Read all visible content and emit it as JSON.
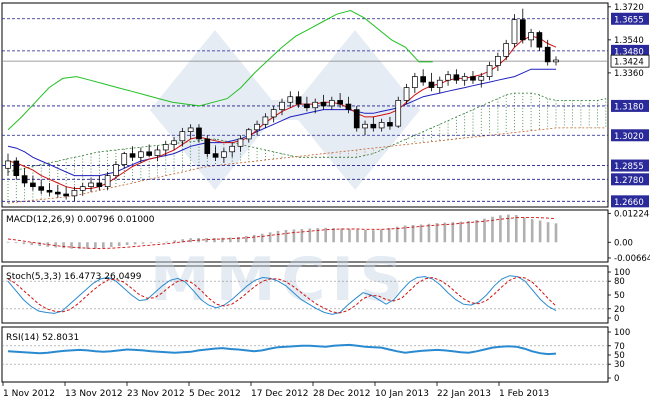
{
  "chart_data": [
    {
      "type": "candlestick",
      "panel": "price",
      "pair_levels": {
        "axis_ticks": [
          "1.3720",
          "1.3540",
          "1.3360"
        ],
        "levels": [
          {
            "value": 1.3655,
            "label": "1.3655"
          },
          {
            "value": 1.348,
            "label": "1.3480"
          },
          {
            "value": 1.318,
            "label": "1.3180"
          },
          {
            "value": 1.302,
            "label": "1.3020"
          },
          {
            "value": 1.2855,
            "label": "1.2855"
          },
          {
            "value": 1.278,
            "label": "1.2780"
          },
          {
            "value": 1.266,
            "label": "1.2660"
          }
        ],
        "current": {
          "value": 1.3424,
          "label": "1.3424"
        }
      },
      "ylim": [
        1.264,
        1.373
      ],
      "x_tick_labels": [
        "1 Nov 2012",
        "13 Nov 2012",
        "23 Nov 2012",
        "5 Dec 2012",
        "17 Dec 2012",
        "28 Dec 2012",
        "10 Jan 2013",
        "22 Jan 2013",
        "1 Feb 2013"
      ],
      "candles": [
        {
          "o": 1.284,
          "h": 1.292,
          "l": 1.28,
          "c": 1.288
        },
        {
          "o": 1.288,
          "h": 1.29,
          "l": 1.278,
          "c": 1.28
        },
        {
          "o": 1.28,
          "h": 1.284,
          "l": 1.274,
          "c": 1.276
        },
        {
          "o": 1.276,
          "h": 1.28,
          "l": 1.272,
          "c": 1.274
        },
        {
          "o": 1.274,
          "h": 1.278,
          "l": 1.27,
          "c": 1.272
        },
        {
          "o": 1.272,
          "h": 1.276,
          "l": 1.269,
          "c": 1.271
        },
        {
          "o": 1.271,
          "h": 1.275,
          "l": 1.268,
          "c": 1.27
        },
        {
          "o": 1.27,
          "h": 1.274,
          "l": 1.267,
          "c": 1.269
        },
        {
          "o": 1.269,
          "h": 1.274,
          "l": 1.266,
          "c": 1.272
        },
        {
          "o": 1.272,
          "h": 1.276,
          "l": 1.269,
          "c": 1.274
        },
        {
          "o": 1.274,
          "h": 1.279,
          "l": 1.271,
          "c": 1.276
        },
        {
          "o": 1.276,
          "h": 1.28,
          "l": 1.272,
          "c": 1.274
        },
        {
          "o": 1.274,
          "h": 1.282,
          "l": 1.272,
          "c": 1.28
        },
        {
          "o": 1.28,
          "h": 1.288,
          "l": 1.278,
          "c": 1.286
        },
        {
          "o": 1.286,
          "h": 1.293,
          "l": 1.284,
          "c": 1.292
        },
        {
          "o": 1.292,
          "h": 1.296,
          "l": 1.288,
          "c": 1.29
        },
        {
          "o": 1.29,
          "h": 1.295,
          "l": 1.287,
          "c": 1.293
        },
        {
          "o": 1.293,
          "h": 1.297,
          "l": 1.29,
          "c": 1.291
        },
        {
          "o": 1.291,
          "h": 1.296,
          "l": 1.288,
          "c": 1.294
        },
        {
          "o": 1.294,
          "h": 1.299,
          "l": 1.291,
          "c": 1.297
        },
        {
          "o": 1.297,
          "h": 1.301,
          "l": 1.294,
          "c": 1.299
        },
        {
          "o": 1.299,
          "h": 1.306,
          "l": 1.296,
          "c": 1.304
        },
        {
          "o": 1.304,
          "h": 1.308,
          "l": 1.3,
          "c": 1.306
        },
        {
          "o": 1.306,
          "h": 1.308,
          "l": 1.298,
          "c": 1.3
        },
        {
          "o": 1.3,
          "h": 1.302,
          "l": 1.29,
          "c": 1.292
        },
        {
          "o": 1.292,
          "h": 1.296,
          "l": 1.288,
          "c": 1.29
        },
        {
          "o": 1.29,
          "h": 1.295,
          "l": 1.287,
          "c": 1.293
        },
        {
          "o": 1.293,
          "h": 1.298,
          "l": 1.29,
          "c": 1.296
        },
        {
          "o": 1.296,
          "h": 1.302,
          "l": 1.293,
          "c": 1.3
        },
        {
          "o": 1.3,
          "h": 1.306,
          "l": 1.298,
          "c": 1.305
        },
        {
          "o": 1.305,
          "h": 1.31,
          "l": 1.302,
          "c": 1.308
        },
        {
          "o": 1.308,
          "h": 1.314,
          "l": 1.306,
          "c": 1.312
        },
        {
          "o": 1.312,
          "h": 1.318,
          "l": 1.309,
          "c": 1.316
        },
        {
          "o": 1.316,
          "h": 1.322,
          "l": 1.313,
          "c": 1.32
        },
        {
          "o": 1.32,
          "h": 1.326,
          "l": 1.317,
          "c": 1.323
        },
        {
          "o": 1.323,
          "h": 1.326,
          "l": 1.317,
          "c": 1.319
        },
        {
          "o": 1.319,
          "h": 1.323,
          "l": 1.315,
          "c": 1.317
        },
        {
          "o": 1.317,
          "h": 1.322,
          "l": 1.314,
          "c": 1.32
        },
        {
          "o": 1.32,
          "h": 1.324,
          "l": 1.316,
          "c": 1.318
        },
        {
          "o": 1.318,
          "h": 1.323,
          "l": 1.316,
          "c": 1.321
        },
        {
          "o": 1.321,
          "h": 1.325,
          "l": 1.317,
          "c": 1.319
        },
        {
          "o": 1.319,
          "h": 1.323,
          "l": 1.314,
          "c": 1.316
        },
        {
          "o": 1.316,
          "h": 1.318,
          "l": 1.304,
          "c": 1.306
        },
        {
          "o": 1.306,
          "h": 1.31,
          "l": 1.302,
          "c": 1.308
        },
        {
          "o": 1.308,
          "h": 1.312,
          "l": 1.304,
          "c": 1.306
        },
        {
          "o": 1.306,
          "h": 1.311,
          "l": 1.304,
          "c": 1.309
        },
        {
          "o": 1.309,
          "h": 1.312,
          "l": 1.305,
          "c": 1.307
        },
        {
          "o": 1.307,
          "h": 1.323,
          "l": 1.306,
          "c": 1.321
        },
        {
          "o": 1.321,
          "h": 1.33,
          "l": 1.319,
          "c": 1.328
        },
        {
          "o": 1.328,
          "h": 1.336,
          "l": 1.325,
          "c": 1.334
        },
        {
          "o": 1.334,
          "h": 1.338,
          "l": 1.329,
          "c": 1.331
        },
        {
          "o": 1.331,
          "h": 1.336,
          "l": 1.326,
          "c": 1.328
        },
        {
          "o": 1.328,
          "h": 1.334,
          "l": 1.325,
          "c": 1.332
        },
        {
          "o": 1.332,
          "h": 1.337,
          "l": 1.329,
          "c": 1.335
        },
        {
          "o": 1.335,
          "h": 1.338,
          "l": 1.33,
          "c": 1.332
        },
        {
          "o": 1.332,
          "h": 1.336,
          "l": 1.329,
          "c": 1.334
        },
        {
          "o": 1.334,
          "h": 1.337,
          "l": 1.33,
          "c": 1.332
        },
        {
          "o": 1.332,
          "h": 1.336,
          "l": 1.328,
          "c": 1.334
        },
        {
          "o": 1.334,
          "h": 1.342,
          "l": 1.332,
          "c": 1.34
        },
        {
          "o": 1.34,
          "h": 1.347,
          "l": 1.337,
          "c": 1.345
        },
        {
          "o": 1.345,
          "h": 1.354,
          "l": 1.343,
          "c": 1.352
        },
        {
          "o": 1.352,
          "h": 1.368,
          "l": 1.35,
          "c": 1.365
        },
        {
          "o": 1.365,
          "h": 1.371,
          "l": 1.352,
          "c": 1.354
        },
        {
          "o": 1.354,
          "h": 1.36,
          "l": 1.35,
          "c": 1.358
        },
        {
          "o": 1.358,
          "h": 1.359,
          "l": 1.348,
          "c": 1.35
        },
        {
          "o": 1.35,
          "h": 1.354,
          "l": 1.34,
          "c": 1.342
        },
        {
          "o": 1.342,
          "h": 1.345,
          "l": 1.34,
          "c": 1.343
        }
      ],
      "tenkan": [
        1.288,
        1.287,
        1.285,
        1.283,
        1.28,
        1.278,
        1.276,
        1.274,
        1.273,
        1.273,
        1.273,
        1.274,
        1.276,
        1.279,
        1.282,
        1.285,
        1.287,
        1.289,
        1.29,
        1.292,
        1.294,
        1.297,
        1.3,
        1.301,
        1.3,
        1.299,
        1.298,
        1.298,
        1.299,
        1.301,
        1.305,
        1.309,
        1.312,
        1.315,
        1.317,
        1.319,
        1.319,
        1.319,
        1.32,
        1.32,
        1.319,
        1.317,
        1.314,
        1.312,
        1.312,
        1.313,
        1.314,
        1.316,
        1.32,
        1.324,
        1.327,
        1.329,
        1.33,
        1.332,
        1.333,
        1.333,
        1.334,
        1.335,
        1.337,
        1.34,
        1.344,
        1.35,
        1.354,
        1.356,
        1.355,
        1.352,
        1.35
      ],
      "kijun": [
        1.296,
        1.295,
        1.293,
        1.29,
        1.288,
        1.286,
        1.284,
        1.282,
        1.28,
        1.28,
        1.28,
        1.28,
        1.281,
        1.282,
        1.284,
        1.286,
        1.288,
        1.289,
        1.29,
        1.291,
        1.292,
        1.294,
        1.296,
        1.297,
        1.298,
        1.298,
        1.298,
        1.299,
        1.3,
        1.302,
        1.304,
        1.306,
        1.308,
        1.31,
        1.312,
        1.313,
        1.314,
        1.315,
        1.316,
        1.316,
        1.316,
        1.316,
        1.315,
        1.314,
        1.314,
        1.315,
        1.316,
        1.317,
        1.319,
        1.321,
        1.323,
        1.324,
        1.325,
        1.326,
        1.327,
        1.328,
        1.329,
        1.33,
        1.331,
        1.332,
        1.333,
        1.334,
        1.336,
        1.338,
        1.338,
        1.338,
        1.338
      ],
      "chikou": [
        1.305,
        1.312,
        1.32,
        1.328,
        1.333,
        1.334,
        1.332,
        1.33,
        1.328,
        1.326,
        1.324,
        1.322,
        1.32,
        1.319,
        1.318,
        1.32,
        1.322,
        1.328,
        1.336,
        1.343,
        1.35,
        1.356,
        1.36,
        1.364,
        1.368,
        1.37,
        1.366,
        1.36,
        1.354,
        1.35,
        1.342,
        1.342
      ],
      "cloud_a": [
        1.282,
        1.283,
        1.284,
        1.285,
        1.286,
        1.287,
        1.288,
        1.289,
        1.29,
        1.291,
        1.292,
        1.293,
        1.2935,
        1.294,
        1.2945,
        1.295,
        1.2955,
        1.296,
        1.2965,
        1.297,
        1.2975,
        1.298,
        1.2985,
        1.299,
        1.2995,
        1.3,
        1.299,
        1.298,
        1.297,
        1.296,
        1.295,
        1.294,
        1.293,
        1.292,
        1.291,
        1.29,
        1.29,
        1.29,
        1.29,
        1.29,
        1.29,
        1.29,
        1.29,
        1.291,
        1.292,
        1.294,
        1.296,
        1.298,
        1.3,
        1.302,
        1.304,
        1.306,
        1.308,
        1.31,
        1.312,
        1.314,
        1.316,
        1.318,
        1.32,
        1.322,
        1.324,
        1.325,
        1.325,
        1.325,
        1.324,
        1.322,
        1.321,
        1.321,
        1.321,
        1.321,
        1.321,
        1.321,
        1.322,
        1.323
      ],
      "cloud_b": [
        1.265,
        1.2655,
        1.266,
        1.2665,
        1.267,
        1.2675,
        1.268,
        1.2685,
        1.269,
        1.27,
        1.271,
        1.272,
        1.273,
        1.274,
        1.275,
        1.276,
        1.277,
        1.278,
        1.279,
        1.28,
        1.281,
        1.282,
        1.283,
        1.284,
        1.285,
        1.2855,
        1.286,
        1.2865,
        1.287,
        1.2875,
        1.288,
        1.2885,
        1.289,
        1.2895,
        1.29,
        1.2905,
        1.291,
        1.2915,
        1.292,
        1.2925,
        1.293,
        1.2935,
        1.294,
        1.2945,
        1.295,
        1.2955,
        1.296,
        1.2965,
        1.297,
        1.2975,
        1.298,
        1.2985,
        1.299,
        1.2995,
        1.3,
        1.3005,
        1.301,
        1.3015,
        1.302,
        1.3025,
        1.303,
        1.3035,
        1.304,
        1.3045,
        1.305,
        1.3055,
        1.306,
        1.306,
        1.306,
        1.306,
        1.306,
        1.306,
        1.306,
        1.306
      ]
    },
    {
      "type": "bar",
      "panel": "macd",
      "title": "MACD(12,26,9) 0.00796 0.01000",
      "axis_ticks": [
        "0.01224",
        "0.00",
        "-0.00664"
      ],
      "ylim": [
        -0.0075,
        0.0128
      ],
      "histogram": [
        0.0002,
        -0.0003,
        -0.0008,
        -0.0012,
        -0.0016,
        -0.0019,
        -0.0022,
        -0.0025,
        -0.0027,
        -0.0028,
        -0.0028,
        -0.0027,
        -0.0024,
        -0.002,
        -0.0016,
        -0.0012,
        -0.0009,
        -0.0006,
        -0.0003,
        0.0,
        0.0003,
        0.0008,
        0.0013,
        0.0017,
        0.0018,
        0.0018,
        0.0018,
        0.0019,
        0.002,
        0.0022,
        0.0026,
        0.0031,
        0.0036,
        0.0042,
        0.0048,
        0.0052,
        0.0054,
        0.0056,
        0.0058,
        0.006,
        0.0061,
        0.006,
        0.0058,
        0.0055,
        0.0053,
        0.0052,
        0.0051,
        0.0054,
        0.006,
        0.0066,
        0.0071,
        0.0073,
        0.0075,
        0.0078,
        0.0081,
        0.0083,
        0.0085,
        0.0087,
        0.009,
        0.0094,
        0.01,
        0.0108,
        0.0114,
        0.0117,
        0.0115,
        0.0105,
        0.0098,
        0.0092,
        0.0085,
        0.008
      ],
      "signal": [
        0.0014,
        0.001,
        0.0005,
        0.0,
        -0.0005,
        -0.001,
        -0.0014,
        -0.0018,
        -0.0021,
        -0.0023,
        -0.0025,
        -0.0026,
        -0.0026,
        -0.0025,
        -0.0023,
        -0.0021,
        -0.0018,
        -0.0015,
        -0.0012,
        -0.0009,
        -0.0006,
        -0.0002,
        0.0002,
        0.0006,
        0.0009,
        0.0011,
        0.0013,
        0.0014,
        0.0015,
        0.0017,
        0.0019,
        0.0022,
        0.0025,
        0.0029,
        0.0033,
        0.0037,
        0.0041,
        0.0044,
        0.0047,
        0.005,
        0.0053,
        0.0055,
        0.0056,
        0.0056,
        0.0056,
        0.0055,
        0.0055,
        0.0055,
        0.0056,
        0.0058,
        0.0061,
        0.0064,
        0.0067,
        0.007,
        0.0072,
        0.0075,
        0.0077,
        0.008,
        0.0083,
        0.0086,
        0.0089,
        0.0093,
        0.0097,
        0.0101,
        0.0104,
        0.0105,
        0.0105,
        0.0104,
        0.0102,
        0.01
      ]
    },
    {
      "type": "line",
      "panel": "stochastic",
      "title": "Stoch(5,3,3) 16.4773 26.0499",
      "axis_ticks": [
        "100",
        "80",
        "50",
        "20",
        "0"
      ],
      "ylim": [
        0,
        100
      ],
      "k": [
        80,
        60,
        40,
        25,
        15,
        12,
        10,
        15,
        30,
        45,
        60,
        75,
        85,
        88,
        80,
        65,
        50,
        38,
        40,
        55,
        70,
        82,
        86,
        78,
        60,
        40,
        28,
        22,
        28,
        40,
        55,
        70,
        82,
        88,
        86,
        80,
        70,
        55,
        40,
        30,
        20,
        12,
        8,
        12,
        28,
        42,
        55,
        50,
        40,
        30,
        40,
        60,
        78,
        88,
        90,
        85,
        72,
        55,
        40,
        30,
        28,
        35,
        50,
        70,
        85,
        92,
        90,
        80,
        60,
        40,
        25,
        16
      ],
      "d": [
        85,
        75,
        60,
        45,
        30,
        20,
        15,
        13,
        18,
        30,
        45,
        60,
        73,
        83,
        84,
        78,
        65,
        51,
        43,
        44,
        55,
        69,
        80,
        82,
        75,
        60,
        43,
        30,
        26,
        30,
        41,
        55,
        69,
        80,
        85,
        85,
        79,
        68,
        55,
        42,
        30,
        21,
        13,
        11,
        16,
        27,
        42,
        49,
        48,
        40,
        37,
        43,
        59,
        75,
        85,
        88,
        82,
        71,
        56,
        42,
        33,
        31,
        38,
        52,
        68,
        82,
        89,
        87,
        77,
        60,
        42,
        26
      ]
    },
    {
      "type": "line",
      "panel": "rsi",
      "title": "RSI(14) 52.8031",
      "axis_ticks": [
        "100",
        "70",
        "50",
        "30",
        "0"
      ],
      "ylim": [
        0,
        100
      ],
      "values": [
        58,
        57,
        56,
        55,
        54,
        55,
        57,
        59,
        60,
        61,
        60,
        58,
        57,
        58,
        60,
        62,
        61,
        60,
        58,
        57,
        56,
        55,
        56,
        57,
        60,
        62,
        64,
        65,
        63,
        62,
        60,
        58,
        60,
        64,
        67,
        68,
        69,
        70,
        70,
        69,
        68,
        70,
        71,
        72,
        70,
        68,
        67,
        66,
        62,
        58,
        55,
        57,
        59,
        60,
        61,
        60,
        58,
        56,
        55,
        58,
        62,
        66,
        68,
        69,
        68,
        64,
        58,
        54,
        52,
        53
      ]
    }
  ]
}
